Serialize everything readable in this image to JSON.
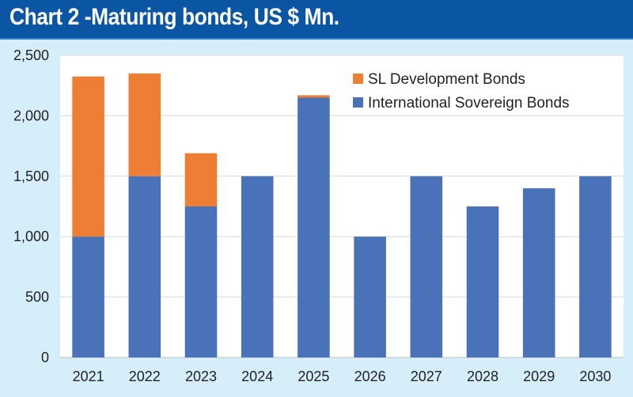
{
  "header": {
    "title": "Chart 2 -Maturing bonds, US $ Mn."
  },
  "chart_data": {
    "type": "bar",
    "stacked": true,
    "title": "Chart 2 -Maturing bonds, US $ Mn.",
    "xlabel": "",
    "ylabel": "",
    "categories": [
      "2021",
      "2022",
      "2023",
      "2024",
      "2025",
      "2026",
      "2027",
      "2028",
      "2029",
      "2030"
    ],
    "series": [
      {
        "name": "International Sovereign Bonds",
        "color": "#4a72b8",
        "values": [
          1000,
          1500,
          1250,
          1500,
          2150,
          1000,
          1500,
          1250,
          1400,
          1500
        ]
      },
      {
        "name": "SL Development Bonds",
        "color": "#ef7e35",
        "values": [
          1325,
          850,
          440,
          0,
          20,
          0,
          0,
          0,
          0,
          0
        ]
      }
    ],
    "ylim": [
      0,
      2500
    ],
    "yticks": [
      "0",
      "500",
      "1,000",
      "1,500",
      "2,000",
      "2,500"
    ],
    "ytick_values": [
      0,
      500,
      1000,
      1500,
      2000,
      2500
    ],
    "grid": true,
    "legend_placement": "top-right",
    "legend_order": [
      "SL Development Bonds",
      "International Sovereign Bonds"
    ],
    "plot_background": "#ffffff"
  }
}
